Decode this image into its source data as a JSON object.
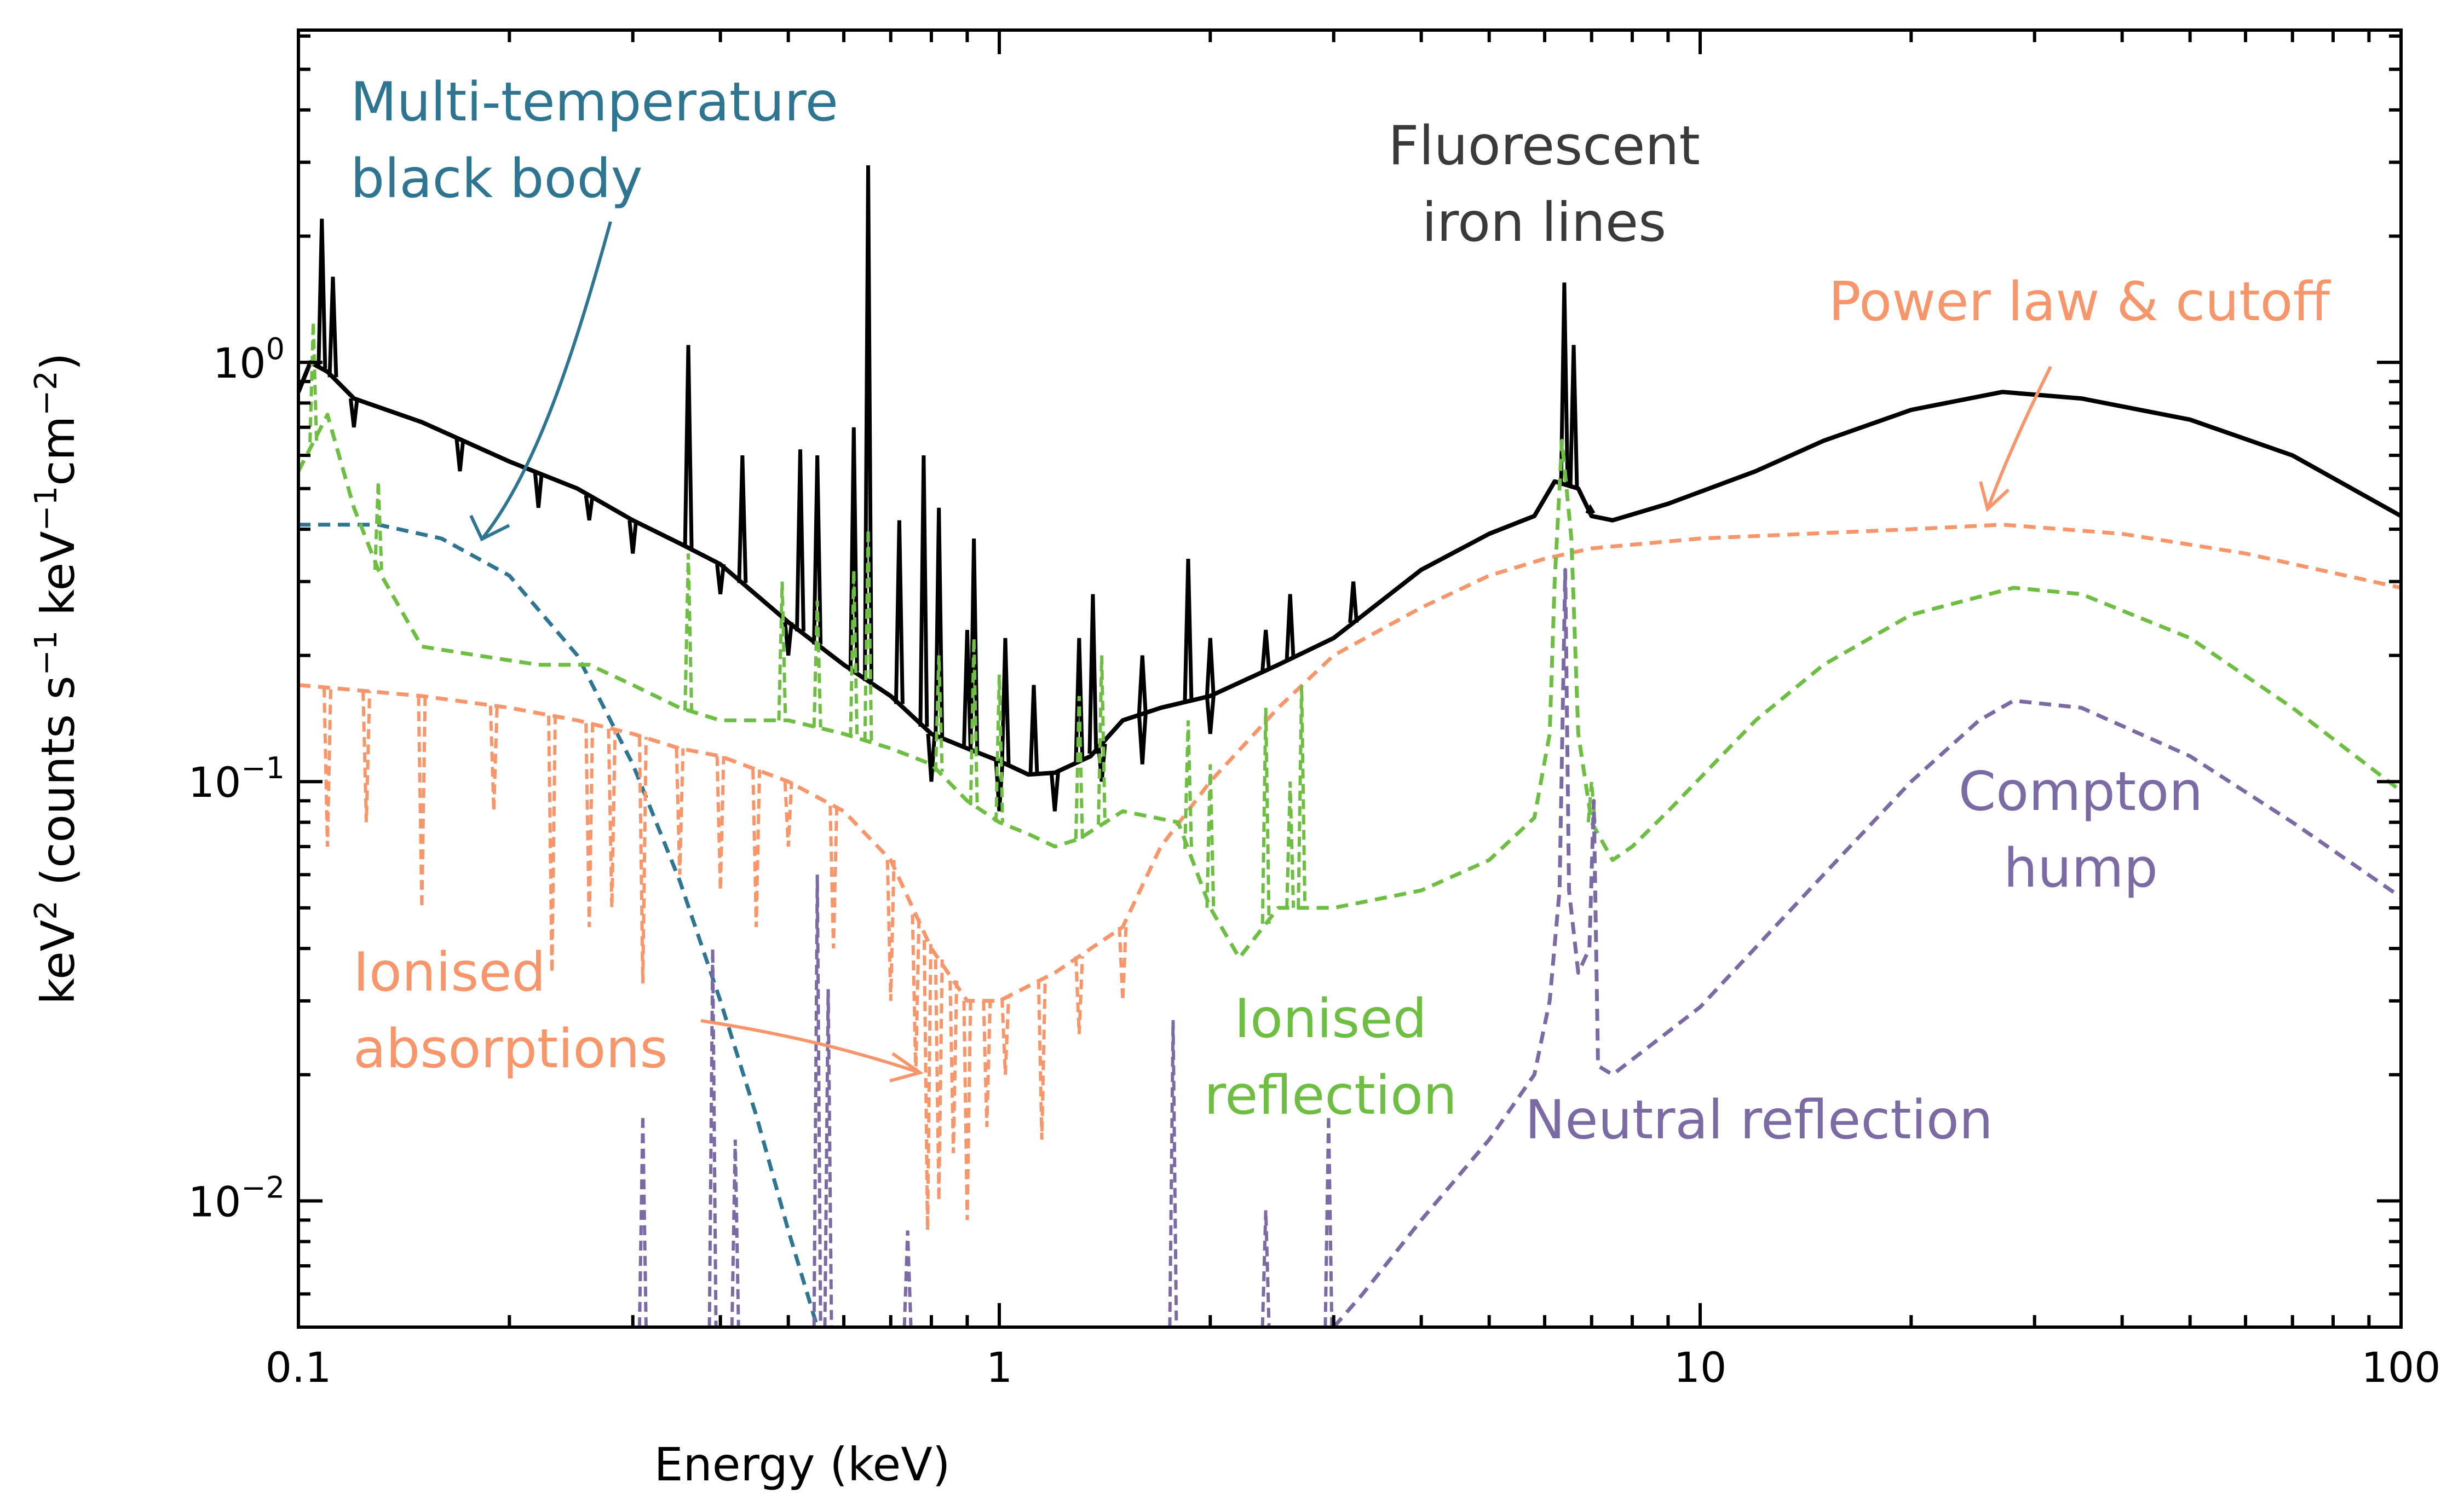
{
  "chart_data": {
    "type": "line",
    "xlabel": "Energy (keV)",
    "ylabel": {
      "base": "keV",
      "base_sup": "2",
      "open": " (counts s",
      "sup1": "−1",
      "mid": " keV",
      "sup2": "−1",
      "mid2": "cm",
      "sup3": "−2",
      "close": ")"
    },
    "x_scale": "log",
    "y_scale": "log",
    "xlim": [
      0.1,
      100
    ],
    "ylim": [
      0.005,
      6.2
    ],
    "x_ticks": [
      {
        "value": 0.1,
        "label": "0.1"
      },
      {
        "value": 1,
        "label": "1"
      },
      {
        "value": 10,
        "label": "10"
      },
      {
        "value": 100,
        "label": "100"
      }
    ],
    "y_ticks": [
      {
        "value": 1,
        "base": "10",
        "exp": "0"
      },
      {
        "value": 0.1,
        "base": "10",
        "exp": "−1"
      },
      {
        "value": 0.01,
        "base": "10",
        "exp": "−2"
      }
    ],
    "grid": false,
    "legend": "none",
    "series": [
      {
        "role": "total",
        "color": "#000000",
        "dash": "solid",
        "points": [
          [
            0.1,
            0.85
          ],
          [
            0.104,
            1.0
          ],
          [
            0.11,
            0.95
          ],
          [
            0.12,
            0.82
          ],
          [
            0.15,
            0.72
          ],
          [
            0.2,
            0.58
          ],
          [
            0.25,
            0.5
          ],
          [
            0.3,
            0.42
          ],
          [
            0.35,
            0.37
          ],
          [
            0.4,
            0.33
          ],
          [
            0.5,
            0.24
          ],
          [
            0.6,
            0.19
          ],
          [
            0.7,
            0.16
          ],
          [
            0.8,
            0.13
          ],
          [
            0.9,
            0.12
          ],
          [
            1.0,
            0.112
          ],
          [
            1.1,
            0.104
          ],
          [
            1.2,
            0.105
          ],
          [
            1.35,
            0.115
          ],
          [
            1.5,
            0.14
          ],
          [
            1.7,
            0.15
          ],
          [
            2.0,
            0.16
          ],
          [
            2.5,
            0.19
          ],
          [
            3.0,
            0.22
          ],
          [
            4.0,
            0.32
          ],
          [
            5.0,
            0.39
          ],
          [
            5.8,
            0.43
          ],
          [
            6.2,
            0.52
          ],
          [
            6.7,
            0.5
          ],
          [
            7.0,
            0.43
          ],
          [
            7.5,
            0.42
          ],
          [
            9.0,
            0.46
          ],
          [
            12.0,
            0.55
          ],
          [
            15.0,
            0.65
          ],
          [
            20.0,
            0.77
          ],
          [
            27.0,
            0.85
          ],
          [
            35.0,
            0.82
          ],
          [
            50.0,
            0.73
          ],
          [
            70.0,
            0.6
          ],
          [
            100.0,
            0.43
          ]
        ],
        "lines": [
          [
            0.108,
            2.2
          ],
          [
            0.112,
            1.6
          ],
          [
            0.36,
            1.1
          ],
          [
            0.43,
            0.6
          ],
          [
            0.52,
            0.62
          ],
          [
            0.55,
            0.6
          ],
          [
            0.62,
            0.7
          ],
          [
            0.65,
            2.95
          ],
          [
            0.72,
            0.42
          ],
          [
            0.78,
            0.6
          ],
          [
            0.82,
            0.45
          ],
          [
            0.9,
            0.23
          ],
          [
            0.92,
            0.38
          ],
          [
            1.02,
            0.22
          ],
          [
            1.12,
            0.17
          ],
          [
            1.3,
            0.22
          ],
          [
            1.36,
            0.28
          ],
          [
            1.6,
            0.2
          ],
          [
            1.86,
            0.34
          ],
          [
            2.0,
            0.22
          ],
          [
            2.4,
            0.23
          ],
          [
            2.6,
            0.28
          ],
          [
            3.2,
            0.3
          ],
          [
            6.4,
            1.55
          ],
          [
            6.6,
            1.1
          ],
          [
            6.97,
            0.45
          ]
        ],
        "absorptions": [
          [
            0.12,
            0.7
          ],
          [
            0.17,
            0.55
          ],
          [
            0.22,
            0.45
          ],
          [
            0.26,
            0.42
          ],
          [
            0.3,
            0.35
          ],
          [
            0.4,
            0.28
          ],
          [
            0.5,
            0.2
          ],
          [
            0.8,
            0.1
          ],
          [
            1.0,
            0.085
          ],
          [
            1.2,
            0.085
          ],
          [
            1.4,
            0.1
          ],
          [
            1.6,
            0.11
          ],
          [
            2.0,
            0.13
          ]
        ]
      },
      {
        "role": "multi-temperature black body",
        "color": "#2d7591",
        "dash": "dashed",
        "points": [
          [
            0.1,
            0.41
          ],
          [
            0.13,
            0.41
          ],
          [
            0.16,
            0.38
          ],
          [
            0.2,
            0.31
          ],
          [
            0.25,
            0.2
          ],
          [
            0.3,
            0.11
          ],
          [
            0.35,
            0.058
          ],
          [
            0.4,
            0.03
          ],
          [
            0.45,
            0.016
          ],
          [
            0.5,
            0.0085
          ],
          [
            0.55,
            0.005
          ]
        ]
      },
      {
        "role": "power law and cutoff (ionised absorptions)",
        "color": "#f7966b",
        "dash": "dashed",
        "points": [
          [
            0.1,
            0.17
          ],
          [
            0.15,
            0.16
          ],
          [
            0.2,
            0.15
          ],
          [
            0.25,
            0.14
          ],
          [
            0.3,
            0.13
          ],
          [
            0.35,
            0.12
          ],
          [
            0.4,
            0.115
          ],
          [
            0.5,
            0.1
          ],
          [
            0.6,
            0.085
          ],
          [
            0.7,
            0.065
          ],
          [
            0.8,
            0.04
          ],
          [
            0.9,
            0.03
          ],
          [
            1.0,
            0.03
          ],
          [
            1.2,
            0.035
          ],
          [
            1.5,
            0.045
          ],
          [
            1.7,
            0.07
          ],
          [
            2.0,
            0.1
          ],
          [
            2.5,
            0.15
          ],
          [
            3.0,
            0.2
          ],
          [
            4.0,
            0.26
          ],
          [
            5.0,
            0.31
          ],
          [
            6.0,
            0.34
          ],
          [
            7.0,
            0.36
          ],
          [
            10.0,
            0.38
          ],
          [
            20.0,
            0.4
          ],
          [
            27.0,
            0.41
          ],
          [
            40.0,
            0.39
          ],
          [
            60.0,
            0.35
          ],
          [
            100.0,
            0.29
          ]
        ],
        "absorptions": [
          [
            0.11,
            0.07
          ],
          [
            0.125,
            0.08
          ],
          [
            0.15,
            0.05
          ],
          [
            0.19,
            0.085
          ],
          [
            0.23,
            0.035
          ],
          [
            0.26,
            0.045
          ],
          [
            0.28,
            0.05
          ],
          [
            0.31,
            0.033
          ],
          [
            0.35,
            0.06
          ],
          [
            0.4,
            0.055
          ],
          [
            0.45,
            0.045
          ],
          [
            0.5,
            0.07
          ],
          [
            0.58,
            0.04
          ],
          [
            0.7,
            0.03
          ],
          [
            0.76,
            0.02
          ],
          [
            0.79,
            0.0085
          ],
          [
            0.82,
            0.01
          ],
          [
            0.86,
            0.013
          ],
          [
            0.9,
            0.009
          ],
          [
            0.96,
            0.015
          ],
          [
            1.02,
            0.02
          ],
          [
            1.15,
            0.014
          ],
          [
            1.3,
            0.025
          ],
          [
            1.5,
            0.03
          ]
        ]
      },
      {
        "role": "ionised reflection",
        "color": "#6fbe44",
        "dash": "dashed",
        "points": [
          [
            0.1,
            0.55
          ],
          [
            0.11,
            0.75
          ],
          [
            0.12,
            0.45
          ],
          [
            0.13,
            0.32
          ],
          [
            0.15,
            0.21
          ],
          [
            0.18,
            0.2
          ],
          [
            0.22,
            0.19
          ],
          [
            0.26,
            0.19
          ],
          [
            0.3,
            0.17
          ],
          [
            0.35,
            0.15
          ],
          [
            0.4,
            0.14
          ],
          [
            0.5,
            0.14
          ],
          [
            0.6,
            0.13
          ],
          [
            0.7,
            0.12
          ],
          [
            0.8,
            0.11
          ],
          [
            0.9,
            0.09
          ],
          [
            1.0,
            0.08
          ],
          [
            1.1,
            0.075
          ],
          [
            1.2,
            0.07
          ],
          [
            1.3,
            0.073
          ],
          [
            1.5,
            0.085
          ],
          [
            1.8,
            0.08
          ],
          [
            2.0,
            0.05
          ],
          [
            2.2,
            0.038
          ],
          [
            2.5,
            0.05
          ],
          [
            3.0,
            0.05
          ],
          [
            4.0,
            0.055
          ],
          [
            5.0,
            0.065
          ],
          [
            5.8,
            0.082
          ],
          [
            6.1,
            0.13
          ],
          [
            6.2,
            0.3
          ],
          [
            6.35,
            0.65
          ],
          [
            6.55,
            0.38
          ],
          [
            6.7,
            0.13
          ],
          [
            7.0,
            0.08
          ],
          [
            7.5,
            0.065
          ],
          [
            8.0,
            0.07
          ],
          [
            9.0,
            0.085
          ],
          [
            12.0,
            0.14
          ],
          [
            15.0,
            0.19
          ],
          [
            20.0,
            0.25
          ],
          [
            28.0,
            0.29
          ],
          [
            35.0,
            0.28
          ],
          [
            50.0,
            0.22
          ],
          [
            70.0,
            0.15
          ],
          [
            100.0,
            0.095
          ]
        ],
        "lines": [
          [
            0.105,
            1.25
          ],
          [
            0.13,
            0.52
          ],
          [
            0.36,
            0.35
          ],
          [
            0.49,
            0.3
          ],
          [
            0.55,
            0.27
          ],
          [
            0.62,
            0.32
          ],
          [
            0.65,
            0.4
          ],
          [
            0.82,
            0.2
          ],
          [
            0.92,
            0.22
          ],
          [
            1.0,
            0.18
          ],
          [
            1.3,
            0.16
          ],
          [
            1.4,
            0.2
          ],
          [
            1.86,
            0.14
          ],
          [
            2.0,
            0.11
          ],
          [
            2.4,
            0.15
          ],
          [
            2.6,
            0.1
          ],
          [
            2.7,
            0.17
          ],
          [
            7.0,
            0.1
          ]
        ]
      },
      {
        "role": "neutral reflection",
        "color": "#7b6aa3",
        "dash": "dashed",
        "points": [
          [
            3.0,
            0.005
          ],
          [
            3.3,
            0.006
          ],
          [
            4.0,
            0.009
          ],
          [
            5.0,
            0.014
          ],
          [
            5.8,
            0.02
          ],
          [
            6.1,
            0.03
          ],
          [
            6.3,
            0.055
          ],
          [
            6.42,
            0.32
          ],
          [
            6.5,
            0.055
          ],
          [
            6.7,
            0.035
          ],
          [
            6.95,
            0.04
          ],
          [
            7.05,
            0.09
          ],
          [
            7.15,
            0.021
          ],
          [
            7.5,
            0.02
          ],
          [
            10.0,
            0.029
          ],
          [
            15.0,
            0.06
          ],
          [
            20.0,
            0.1
          ],
          [
            25.0,
            0.14
          ],
          [
            28.0,
            0.156
          ],
          [
            35.0,
            0.15
          ],
          [
            50.0,
            0.115
          ],
          [
            70.0,
            0.08
          ],
          [
            100.0,
            0.053
          ]
        ],
        "lines": [
          [
            0.31,
            0.016
          ],
          [
            0.39,
            0.04
          ],
          [
            0.42,
            0.014
          ],
          [
            0.55,
            0.06
          ],
          [
            0.57,
            0.032
          ],
          [
            0.74,
            0.0085
          ],
          [
            1.77,
            0.027
          ],
          [
            2.4,
            0.0095
          ],
          [
            2.95,
            0.016
          ]
        ]
      }
    ],
    "annotations": [
      {
        "id": "black-body",
        "lines": [
          "Multi-temperature",
          "black body"
        ],
        "color": "#2d7591"
      },
      {
        "id": "iron-lines",
        "lines": [
          "Fluorescent",
          "iron lines"
        ],
        "color": "#3a3a3a"
      },
      {
        "id": "power-law",
        "lines": [
          "Power law & cutoff"
        ],
        "color": "#f7966b"
      },
      {
        "id": "compton",
        "lines": [
          "Compton",
          "hump"
        ],
        "color": "#7b6aa3"
      },
      {
        "id": "absorptions",
        "lines": [
          "Ionised",
          "absorptions"
        ],
        "color": "#f7966b"
      },
      {
        "id": "ionised-reflection",
        "lines": [
          "Ionised",
          "reflection"
        ],
        "color": "#6fbe44"
      },
      {
        "id": "neutral-reflection",
        "lines": [
          "Neutral reflection"
        ],
        "color": "#7b6aa3"
      }
    ]
  }
}
